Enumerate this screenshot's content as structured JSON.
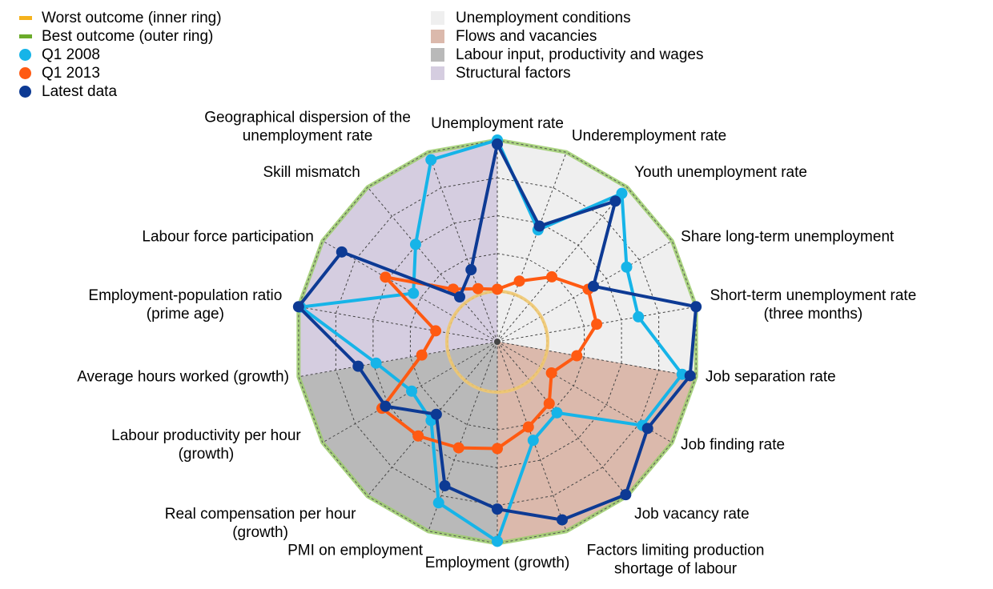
{
  "legend_lines": [
    {
      "label": "Worst outcome (inner ring)",
      "color": "#f5b21d",
      "kind": "line"
    },
    {
      "label": "Best outcome (outer ring)",
      "color": "#6bab2a",
      "kind": "line"
    },
    {
      "label": "Q1 2008",
      "color": "#16b4e8",
      "kind": "dot"
    },
    {
      "label": "Q1 2013",
      "color": "#ff5a12",
      "kind": "dot"
    },
    {
      "label": "Latest data",
      "color": "#0d3a94",
      "kind": "dot"
    }
  ],
  "legend_sectors": [
    {
      "label": "Unemployment conditions",
      "color": "#efefef"
    },
    {
      "label": "Flows and vacancies",
      "color": "#dbb9ac"
    },
    {
      "label": "Labour input, productivity and wages",
      "color": "#b9b9b9"
    },
    {
      "label": "Structural factors",
      "color": "#d5cde0"
    }
  ],
  "chart_data": {
    "type": "radar",
    "axes": [
      {
        "label": [
          "Unemployment rate"
        ],
        "group": 0
      },
      {
        "label": [
          "Underemployment rate"
        ],
        "group": 0
      },
      {
        "label": [
          "Youth unemployment rate"
        ],
        "group": 0
      },
      {
        "label": [
          "Share long-term unemployment"
        ],
        "group": 0
      },
      {
        "label": [
          "Short-term unemployment rate",
          "(three months)"
        ],
        "group": 0
      },
      {
        "label": [
          "Job separation rate"
        ],
        "group": 1
      },
      {
        "label": [
          "Job finding rate"
        ],
        "group": 1
      },
      {
        "label": [
          "Job vacancy rate"
        ],
        "group": 1
      },
      {
        "label": [
          "Factors limiting production",
          "shortage of labour"
        ],
        "group": 1
      },
      {
        "label": [
          "Employment (growth)"
        ],
        "group": 2
      },
      {
        "label": [
          "PMI on employment"
        ],
        "group": 2
      },
      {
        "label": [
          "Real compensation per hour",
          "(growth)"
        ],
        "group": 2
      },
      {
        "label": [
          "Labour productivity per hour",
          "(growth)"
        ],
        "group": 2
      },
      {
        "label": [
          "Average hours worked (growth)"
        ],
        "group": 3
      },
      {
        "label": [
          "Employment-population ratio",
          "(prime age)"
        ],
        "group": 3
      },
      {
        "label": [
          "Labour force participation"
        ],
        "group": 3
      },
      {
        "label": [
          "Skill mismatch"
        ],
        "group": 3
      },
      {
        "label": [
          "Geographical dispersion of the",
          "unemployment rate"
        ],
        "group": 3
      }
    ],
    "sector_colors": [
      "#efefef",
      "#dbb9ac",
      "#b9b9b9",
      "#d5cde0"
    ],
    "inner_ring": 0.25,
    "outer_ring": 1.0,
    "grid_rings": [
      0.25,
      0.4375,
      0.625,
      0.8125,
      1.0
    ],
    "series": [
      {
        "name": "Q1 2008",
        "color": "#16b4e8",
        "values": [
          1.0,
          0.59,
          0.96,
          0.74,
          0.71,
          0.93,
          0.83,
          0.46,
          0.52,
          0.99,
          0.85,
          0.51,
          0.49,
          0.61,
          0.99,
          0.48,
          0.63,
          0.96
        ]
      },
      {
        "name": "Q1 2013",
        "color": "#ff5a12",
        "values": [
          0.26,
          0.32,
          0.42,
          0.52,
          0.5,
          0.4,
          0.31,
          0.4,
          0.45,
          0.53,
          0.56,
          0.61,
          0.66,
          0.38,
          0.31,
          0.64,
          0.34,
          0.28
        ]
      },
      {
        "name": "Latest data",
        "color": "#0d3a94",
        "values": [
          0.98,
          0.61,
          0.91,
          0.55,
          1.0,
          0.97,
          0.86,
          0.99,
          0.94,
          0.83,
          0.76,
          0.47,
          0.64,
          0.7,
          1.0,
          0.89,
          0.29,
          0.38
        ]
      }
    ]
  }
}
